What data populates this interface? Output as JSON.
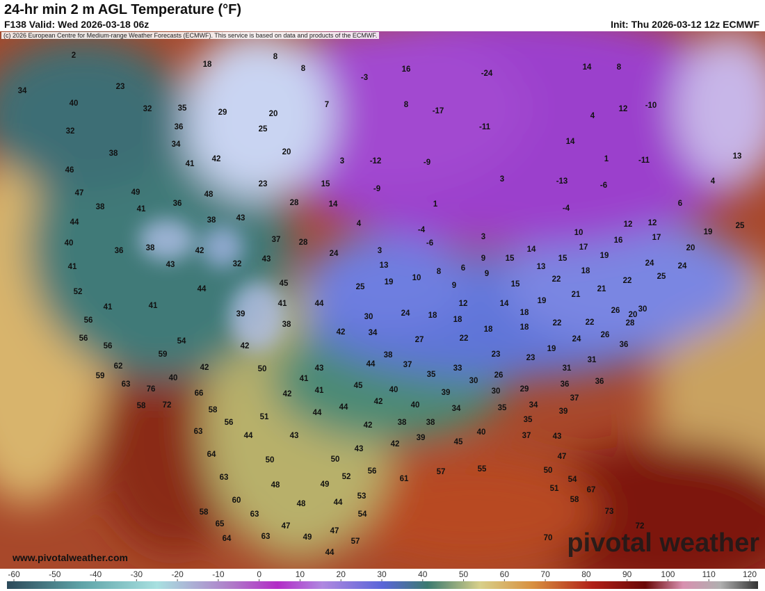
{
  "header": {
    "title": "24-hr min 2 m AGL Temperature (°F)",
    "valid": "F138 Valid: Wed 2026-03-18 06z",
    "init": "Init: Thu 2026-03-12 12z ECMWF",
    "copyright": "(c) 2026 European Centre for Medium-range Weather Forecasts (ECMWF). This service is based on data and products of the ECMWF."
  },
  "map": {
    "website": "www.pivotalweather.com",
    "watermark": "pivotal weather",
    "labels": [
      2,
      8,
      18,
      16,
      8,
      -24,
      14,
      8,
      -3,
      23,
      34,
      40,
      32,
      35,
      29,
      7,
      8,
      -17,
      12,
      -10,
      4,
      20,
      36,
      25,
      32,
      -11,
      34,
      20,
      38,
      14,
      13,
      41,
      42,
      3,
      -12,
      -9,
      1,
      -11,
      46,
      23,
      15,
      3,
      -13,
      -6,
      4,
      47,
      49,
      48,
      -9,
      36,
      28,
      14,
      6,
      38,
      41,
      1,
      -4,
      44,
      38,
      43,
      4,
      12,
      12,
      25,
      -4,
      10,
      17,
      19,
      40,
      36,
      38,
      42,
      37,
      28,
      3,
      -6,
      17,
      16,
      20,
      41,
      43,
      32,
      43,
      24,
      3,
      14,
      15,
      9,
      19,
      13,
      15,
      13,
      24,
      24,
      6,
      8,
      9,
      18,
      25,
      52,
      44,
      45,
      10,
      19,
      25,
      9,
      15,
      22,
      22,
      21,
      21,
      41,
      41,
      41,
      44,
      12,
      14,
      19,
      39,
      18,
      26,
      20,
      30,
      56,
      38,
      30,
      24,
      18,
      18,
      18,
      18,
      22,
      22,
      28,
      56,
      42,
      34,
      54,
      22,
      27,
      24,
      26,
      56,
      42,
      59,
      36,
      23,
      23,
      19,
      38,
      31,
      62,
      42,
      50,
      43,
      44,
      37,
      33,
      31,
      59,
      35,
      26,
      29,
      36,
      41,
      45,
      40,
      30,
      40,
      63,
      76,
      36,
      41,
      42,
      66,
      39,
      30,
      37,
      58,
      72,
      44,
      42,
      40,
      34,
      35,
      34,
      58,
      44,
      39,
      51,
      56,
      38,
      38,
      42,
      35,
      63,
      44,
      43,
      40,
      37,
      43,
      39,
      45,
      42,
      43,
      64,
      50,
      50,
      47,
      57,
      55,
      56,
      61,
      50,
      63,
      52,
      54,
      48,
      49,
      51,
      67,
      53,
      58,
      60,
      48,
      44,
      58,
      63,
      54,
      73,
      65,
      72,
      47,
      47,
      49,
      63,
      64,
      57,
      70,
      44
    ]
  },
  "colorbar": {
    "ticks": [
      -60,
      -50,
      -40,
      -30,
      -20,
      -10,
      0,
      10,
      20,
      30,
      40,
      50,
      60,
      70,
      80,
      90,
      100,
      110,
      120
    ]
  }
}
